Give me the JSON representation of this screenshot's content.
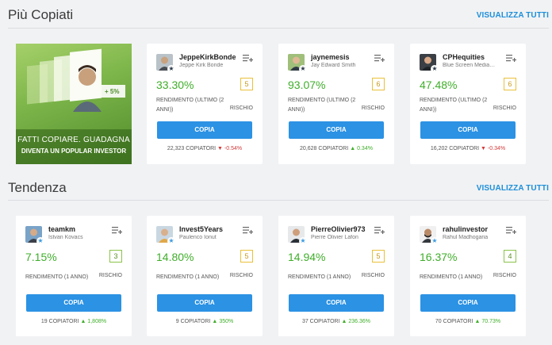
{
  "sections": {
    "most_copied": {
      "title": "Più Copiati",
      "view_all": "VISUALIZZA TUTTI"
    },
    "trending": {
      "title": "Tendenza",
      "view_all": "VISUALIZZA TUTTI"
    }
  },
  "promo": {
    "line1": "FATTI COPIARE. GUADAGNA",
    "line2": "DIVENTA UN POPULAR INVESTOR",
    "badge": "+ 5%"
  },
  "most_copied_cards": [
    {
      "username": "JeppeKirkBonde",
      "fullname": "Jeppe Kirk Bonde",
      "gain": "33.30%",
      "risk": "5",
      "return_label": "RENDIMENTO (ULTIMO (2 ANNI))",
      "risk_label": "RISCHIO",
      "copy": "COPIA",
      "copiers": "22,323 COPIATORI",
      "trend_icon": "down-triangle-icon",
      "change": "-0.54%"
    },
    {
      "username": "jaynemesis",
      "fullname": "Jay Edward Smith",
      "gain": "93.07%",
      "risk": "6",
      "return_label": "RENDIMENTO (ULTIMO (2 ANNI))",
      "risk_label": "RISCHIO",
      "copy": "COPIA",
      "copiers": "20,628 COPIATORI",
      "trend_icon": "up-triangle-icon",
      "change": "0.34%"
    },
    {
      "username": "CPHequities",
      "fullname": "Blue Screen Media…",
      "gain": "47.48%",
      "risk": "6",
      "return_label": "RENDIMENTO (ULTIMO (2 ANNI))",
      "risk_label": "RISCHIO",
      "copy": "COPIA",
      "copiers": "16,202 COPIATORI",
      "trend_icon": "down-triangle-icon",
      "change": "-0.34%"
    }
  ],
  "trending_cards": [
    {
      "username": "teamkm",
      "fullname": "Istvan Kovacs",
      "gain": "7.15%",
      "risk": "3",
      "return_label": "RENDIMENTO (1 ANNO)",
      "risk_label": "RISCHIO",
      "copy": "COPIA",
      "copiers": "19 COPIATORI",
      "trend_icon": "up-triangle-icon",
      "change": "1,808%"
    },
    {
      "username": "Invest5Years",
      "fullname": "Paulenco Ionut",
      "gain": "14.80%",
      "risk": "5",
      "return_label": "RENDIMENTO (1 ANNO)",
      "risk_label": "RISCHIO",
      "copy": "COPIA",
      "copiers": "9 COPIATORI",
      "trend_icon": "up-triangle-icon",
      "change": "350%"
    },
    {
      "username": "PierreOlivier973",
      "fullname": "Pierre Olivier Lafon",
      "gain": "14.94%",
      "risk": "5",
      "return_label": "RENDIMENTO (1 ANNO)",
      "risk_label": "RISCHIO",
      "copy": "COPIA",
      "copiers": "37 COPIATORI",
      "trend_icon": "up-triangle-icon",
      "change": "236.36%"
    },
    {
      "username": "rahulinvestor",
      "fullname": "Rahul Madhogaria",
      "gain": "16.37%",
      "risk": "4",
      "return_label": "RENDIMENTO (1 ANNO)",
      "risk_label": "RISCHIO",
      "copy": "COPIA",
      "copiers": "70 COPIATORI",
      "trend_icon": "up-triangle-icon",
      "change": "70.73%"
    }
  ],
  "colors": {
    "accent_blue": "#2b92e4",
    "gain_green": "#3fae2a",
    "loss_red": "#d33a3a",
    "risk_yellow": "#e9c13b",
    "risk_green": "#8bc34a"
  }
}
